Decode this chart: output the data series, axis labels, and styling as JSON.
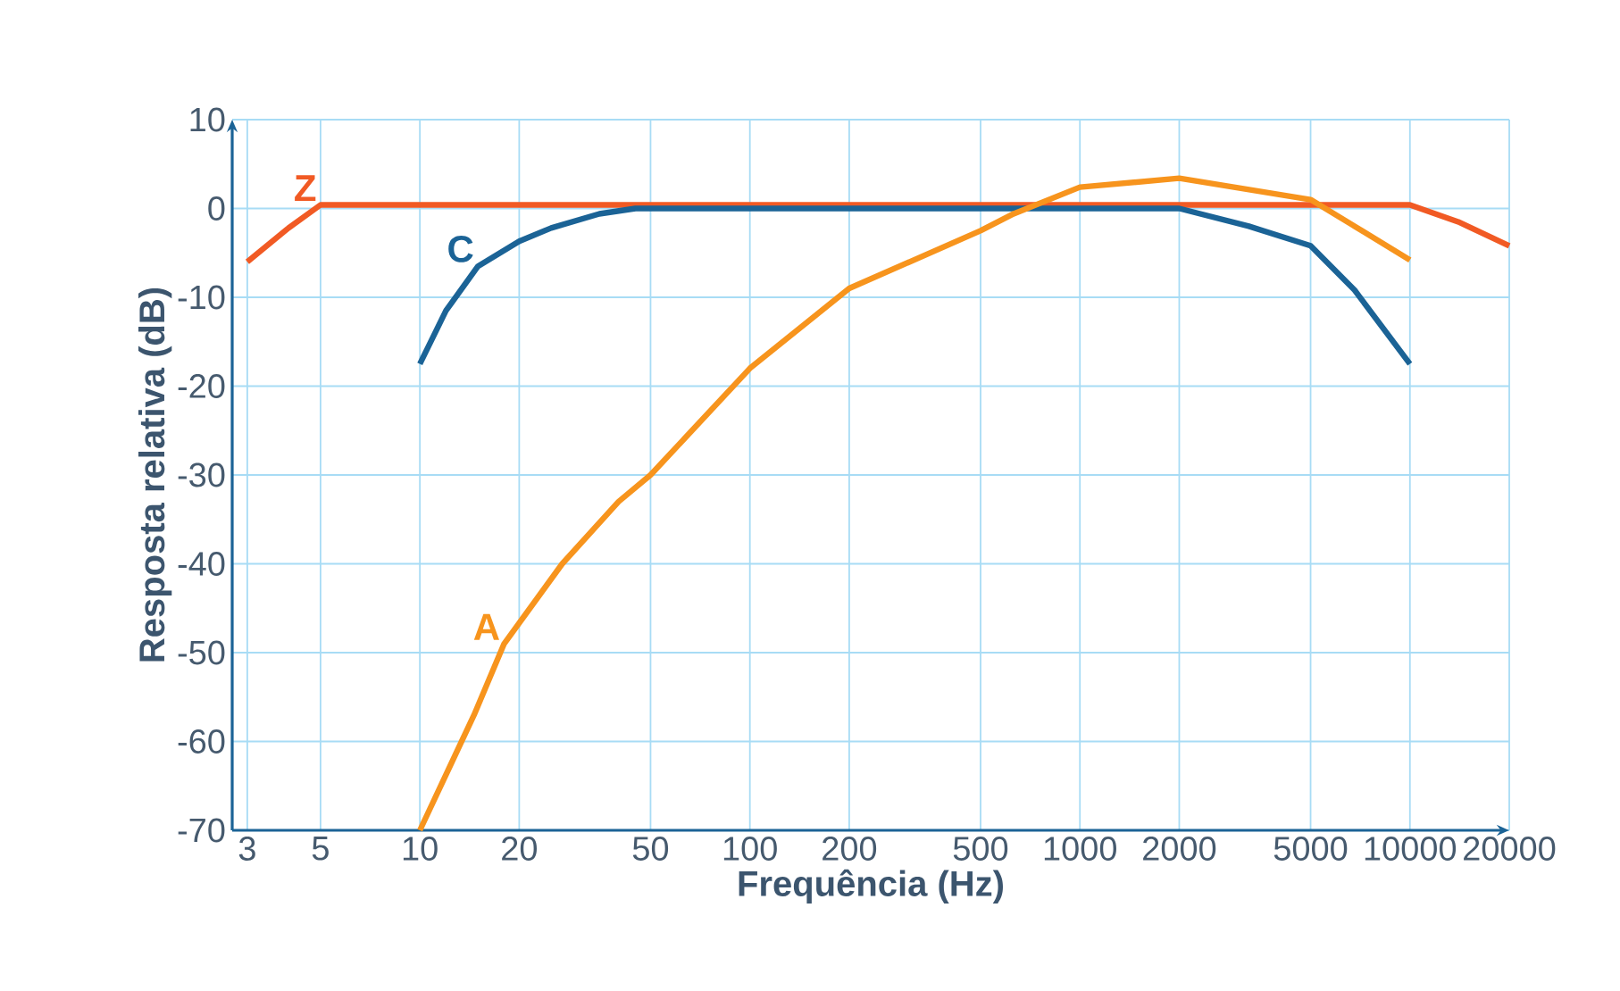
{
  "chart_data": {
    "type": "line",
    "xlabel": "Frequência (Hz)",
    "ylabel": "Resposta relativa (dB)",
    "log": "x",
    "grid": true,
    "xlim": [
      2.7,
      20000
    ],
    "ylim": [
      -70,
      10
    ],
    "xticks": [
      3,
      5,
      10,
      20,
      50,
      100,
      200,
      500,
      1000,
      2000,
      5000,
      10000,
      20000
    ],
    "yticks": [
      -70,
      -60,
      -50,
      -40,
      -30,
      -20,
      -10,
      0,
      10
    ],
    "series": [
      {
        "name": "Z",
        "color": "#f15a24",
        "x": [
          3,
          4,
          5,
          10000,
          14000,
          20000
        ],
        "values": [
          -6,
          -2.2,
          0.4,
          0.4,
          -1.5,
          -4.2
        ]
      },
      {
        "name": "C",
        "color": "#1b6396",
        "x": [
          10,
          12,
          15,
          20,
          25,
          35,
          45,
          2000,
          3250,
          5000,
          6800,
          10000
        ],
        "values": [
          -17.5,
          -11.5,
          -6.5,
          -3.7,
          -2.2,
          -0.6,
          0,
          0,
          -2,
          -4.2,
          -9.2,
          -17.5
        ]
      },
      {
        "name": "A",
        "color": "#f7941d",
        "x": [
          10,
          14.6,
          18,
          27,
          40,
          50,
          100,
          200,
          500,
          630,
          1000,
          2000,
          5000,
          6800,
          10000
        ],
        "values": [
          -70,
          -57,
          -49,
          -40,
          -33,
          -30,
          -18,
          -9,
          -2.5,
          -0.6,
          2.4,
          3.4,
          1,
          -2,
          -5.8
        ]
      }
    ]
  }
}
